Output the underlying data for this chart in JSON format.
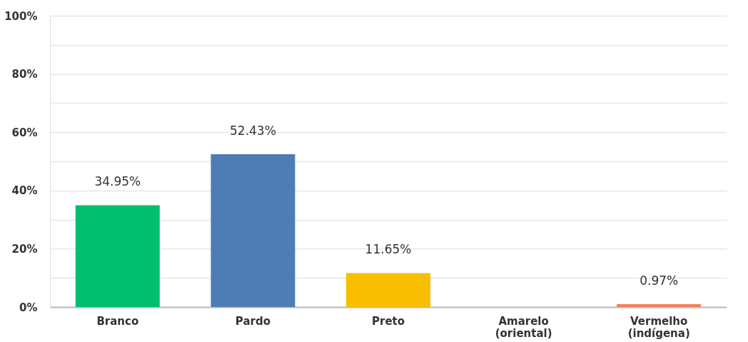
{
  "chart_data": {
    "type": "bar",
    "categories": [
      "Branco",
      "Pardo",
      "Preto",
      "Amarelo (oriental)",
      "Vermelho (indígena)"
    ],
    "values": [
      34.95,
      52.43,
      11.65,
      0,
      0.97
    ],
    "colors": [
      "#00bf6f",
      "#507cb6",
      "#f9be00",
      "#6bc8cd",
      "#f47f5e"
    ],
    "value_labels": [
      "34.95%",
      "52.43%",
      "11.65%",
      null,
      "0.97%"
    ],
    "ylim": [
      0,
      100
    ],
    "yticks": [
      {
        "value": 0,
        "label": "0%"
      },
      {
        "value": 10,
        "label": null
      },
      {
        "value": 20,
        "label": "20%"
      },
      {
        "value": 30,
        "label": null
      },
      {
        "value": 40,
        "label": "40%"
      },
      {
        "value": 50,
        "label": null
      },
      {
        "value": 60,
        "label": "60%"
      },
      {
        "value": 70,
        "label": null
      },
      {
        "value": 80,
        "label": "80%"
      },
      {
        "value": 90,
        "label": null
      },
      {
        "value": 100,
        "label": "100%"
      }
    ],
    "grid": "y",
    "legend": false
  }
}
